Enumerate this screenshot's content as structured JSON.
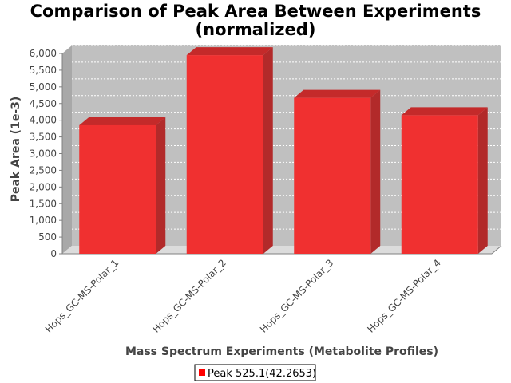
{
  "chart_data": {
    "type": "bar",
    "title": "Comparison of Peak Area Between Experiments",
    "subtitle": "(normalized)",
    "xlabel": "Mass Spectrum Experiments (Metabolite Profiles)",
    "ylabel": "Peak Area (1e-3)",
    "categories": [
      "Hops_GC-MS-Polar_1",
      "Hops_GC-MS-Polar_2",
      "Hops_GC-MS-Polar_3",
      "Hops_GC-MS-Polar_4"
    ],
    "series": [
      {
        "name": "Peak 525.1(42.2653)",
        "values": [
          3850,
          5950,
          4670,
          4150
        ]
      }
    ],
    "ylim": [
      0,
      6000
    ],
    "yticks": [
      0,
      500,
      1000,
      1500,
      2000,
      2500,
      3000,
      3500,
      4000,
      4500,
      5000,
      5500,
      6000
    ],
    "ytick_labels": [
      "0",
      "500",
      "1,000",
      "1,500",
      "2,000",
      "2,500",
      "3,000",
      "3,500",
      "4,000",
      "4,500",
      "5,000",
      "5,500",
      "6,000"
    ],
    "grid": true,
    "legend_position": "bottom-center",
    "colors": {
      "bar_front": "#f03030",
      "bar_top": "#c42a2a",
      "bar_side": "#b22a2a",
      "plot_background": "#c0c0c0",
      "plot_floor": "#dcdcdc",
      "gridline": "#ffffff"
    }
  }
}
